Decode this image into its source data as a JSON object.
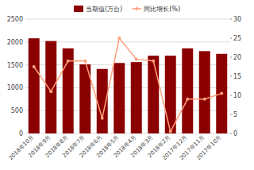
{
  "chart_data": {
    "type": "bar",
    "categories": [
      "2018年10月",
      "2018年9月",
      "2018年8月",
      "2018年7月",
      "2018年6月",
      "2018年5月",
      "2018年4月",
      "2018年3月",
      "2018年2月",
      "2017年12月",
      "2017年11月",
      "2017年10月"
    ],
    "series": [
      {
        "name": "当期值(万台)",
        "type": "bar",
        "color": "#8B0000",
        "values": [
          2080,
          2020,
          1860,
          1510,
          1410,
          1540,
          1560,
          1700,
          1700,
          1860,
          1800,
          1740
        ]
      },
      {
        "name": "同比增长(%)",
        "type": "line",
        "color": "#FFA07A",
        "marker": "circle",
        "axis": "y2",
        "values": [
          17.5,
          11,
          19,
          19,
          4,
          25,
          19.5,
          19,
          0.5,
          9,
          9,
          10.5
        ]
      }
    ],
    "ylim": [
      0,
      2500
    ],
    "yticks": [
      0,
      500,
      1000,
      1500,
      2000,
      2500
    ],
    "y2lim": [
      0,
      30
    ],
    "y2ticks": [
      0,
      5,
      10,
      15,
      20,
      25,
      30
    ],
    "grid": true,
    "legend": "top"
  }
}
